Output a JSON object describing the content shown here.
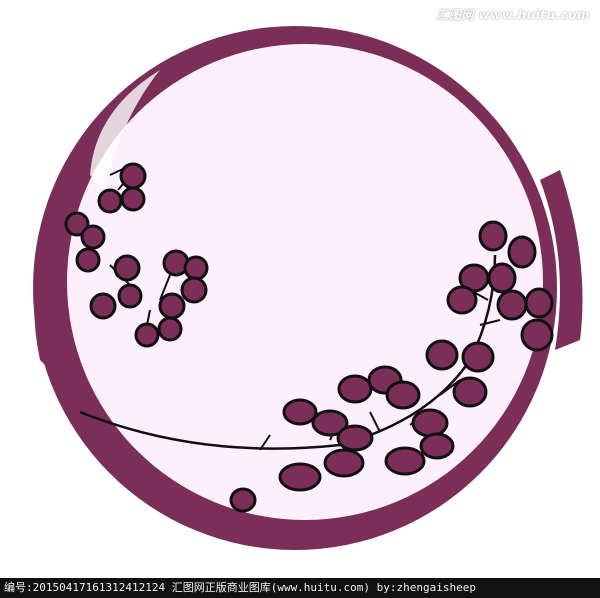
{
  "watermark": "汇图网 www.huitu.com",
  "footer": "编号:20150417161312412124  汇图网正版商业图库(www.huitu.com) by:zhengaisheep",
  "colors": {
    "ring": "#7a2e58",
    "disc": "#fdf0fb",
    "berry": "#7a2e58",
    "ink": "#111111",
    "footer_bg": "#111111"
  }
}
